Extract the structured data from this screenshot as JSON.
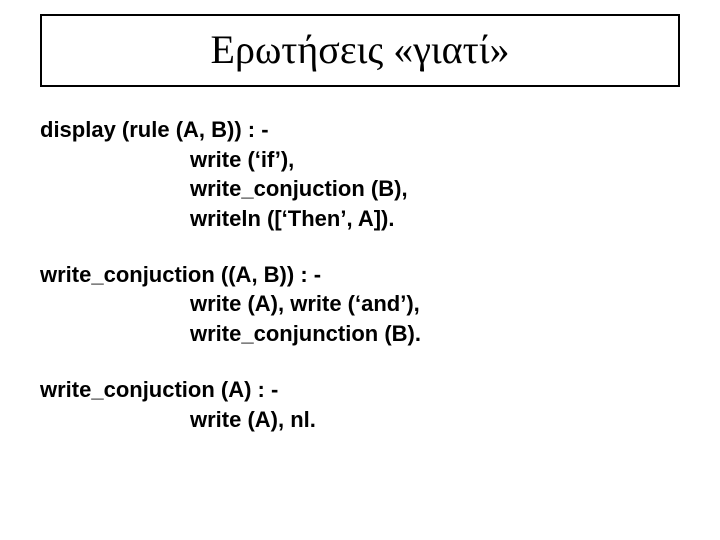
{
  "title": "Ερωτήσεις «γιατί»",
  "block1": {
    "l1": "display (rule (A, B)) : -",
    "l2": "write (‘if’),",
    "l3": "write_conjuction (B),",
    "l4": "writeln ([‘Then’, A])."
  },
  "block2": {
    "l1": "write_conjuction ((A, B)) : -",
    "l2": "write (A), write (‘and’),",
    "l3": "write_conjunction (B)."
  },
  "block3": {
    "l1": "write_conjuction (A) : -",
    "l2": "write (A), nl."
  },
  "colors": {
    "background": "#ffffff",
    "text": "#000000",
    "border": "#000000"
  },
  "fonts": {
    "title_family": "Times New Roman",
    "title_size_pt": 30,
    "body_family": "Arial",
    "body_size_pt": 17,
    "body_weight": "bold"
  }
}
